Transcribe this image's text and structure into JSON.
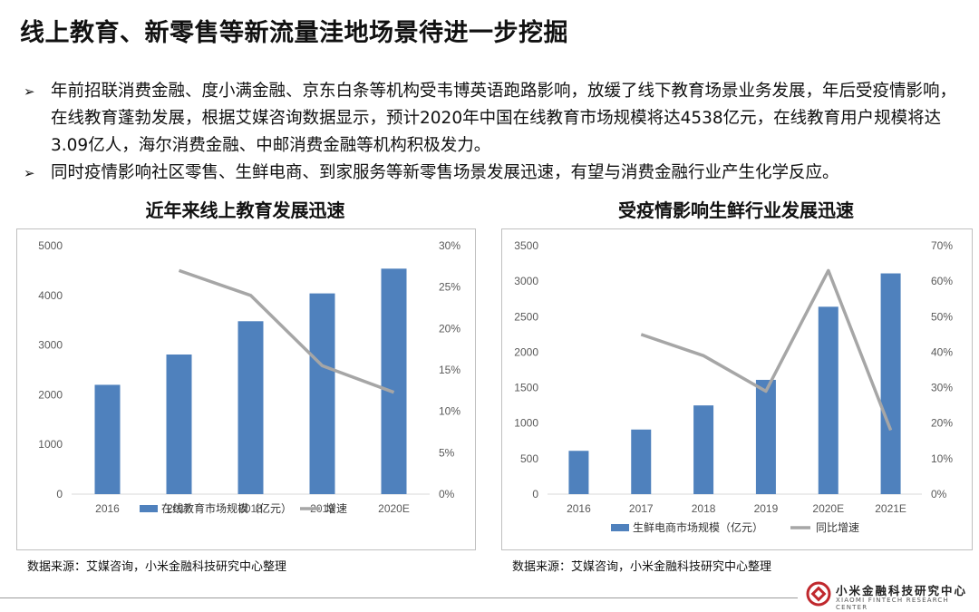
{
  "page": {
    "title": "线上教育、新零售等新流量洼地场景待进一步挖掘",
    "bullets": [
      {
        "marker": "➢",
        "text": "年前招联消费金融、度小满金融、京东白条等机构受韦博英语跑路影响，放缓了线下教育场景业务发展，年后受疫情影响，在线教育蓬勃发展，根据艾媒咨询数据显示，预计2020年中国在线教育市场规模将达4538亿元，在线教育用户规模将达3.09亿人，海尔消费金融、中邮消费金融等机构积极发力。"
      },
      {
        "marker": "➢",
        "text": "同时疫情影响社区零售、生鲜电商、到家服务等新零售场景发展迅速，有望与消费金融行业产生化学反应。"
      }
    ],
    "left_chart_heading": "近年来线上教育发展迅速",
    "right_chart_heading": "受疫情影响生鲜行业发展迅速",
    "left_source": "数据来源：艾媒咨询，小米金融科技研究中心整理",
    "right_source": "数据来源：艾媒咨询，小米金融科技研究中心整理",
    "logo": {
      "cn": "小米金融科技研究中心",
      "en": "XIAOMI FINTECH RESEARCH CENTER"
    }
  },
  "colors": {
    "bar": "#4f81bd",
    "line": "#a6a6a6",
    "axis_text": "#595959",
    "grid": "#d9d9d9"
  },
  "chart_data": [
    {
      "type": "bar",
      "title": "近年来线上教育发展迅速",
      "categories": [
        "2016",
        "2017",
        "2018",
        "2019",
        "2020E"
      ],
      "series": [
        {
          "name": "在线教育市场规模（亿元）",
          "kind": "bar",
          "axis": "left",
          "values": [
            2200,
            2810,
            3480,
            4040,
            4538
          ]
        },
        {
          "name": "增速",
          "kind": "line",
          "axis": "right",
          "values": [
            null,
            0.27,
            0.24,
            0.155,
            0.123
          ]
        }
      ],
      "y_left": {
        "min": 0,
        "max": 5000,
        "ticks": [
          0,
          1000,
          2000,
          3000,
          4000,
          5000
        ],
        "tick_labels": [
          "0",
          "1000",
          "2000",
          "3000",
          "4000",
          "5000"
        ]
      },
      "y_right": {
        "min": 0,
        "max": 0.3,
        "ticks": [
          0,
          0.05,
          0.1,
          0.15,
          0.2,
          0.25,
          0.3
        ],
        "tick_labels": [
          "0%",
          "5%",
          "10%",
          "15%",
          "20%",
          "25%",
          "30%"
        ]
      },
      "grid": false,
      "legend": "bottom"
    },
    {
      "type": "bar",
      "title": "受疫情影响生鲜行业发展迅速",
      "categories": [
        "2016",
        "2017",
        "2018",
        "2019",
        "2020E",
        "2021E"
      ],
      "series": [
        {
          "name": "生鲜电商市场规模（亿元）",
          "kind": "bar",
          "axis": "left",
          "values": [
            610,
            910,
            1250,
            1610,
            2640,
            3110
          ]
        },
        {
          "name": "同比增速",
          "kind": "line",
          "axis": "right",
          "values": [
            null,
            0.45,
            0.39,
            0.29,
            0.63,
            0.18
          ]
        }
      ],
      "y_left": {
        "min": 0,
        "max": 3500,
        "ticks": [
          0,
          500,
          1000,
          1500,
          2000,
          2500,
          3000,
          3500
        ],
        "tick_labels": [
          "0",
          "500",
          "1000",
          "1500",
          "2000",
          "2500",
          "3000",
          "3500"
        ]
      },
      "y_right": {
        "min": 0,
        "max": 0.7,
        "ticks": [
          0,
          0.1,
          0.2,
          0.3,
          0.4,
          0.5,
          0.6,
          0.7
        ],
        "tick_labels": [
          "0%",
          "10%",
          "20%",
          "30%",
          "40%",
          "50%",
          "60%",
          "70%"
        ]
      },
      "grid": false,
      "legend": "bottom"
    }
  ]
}
